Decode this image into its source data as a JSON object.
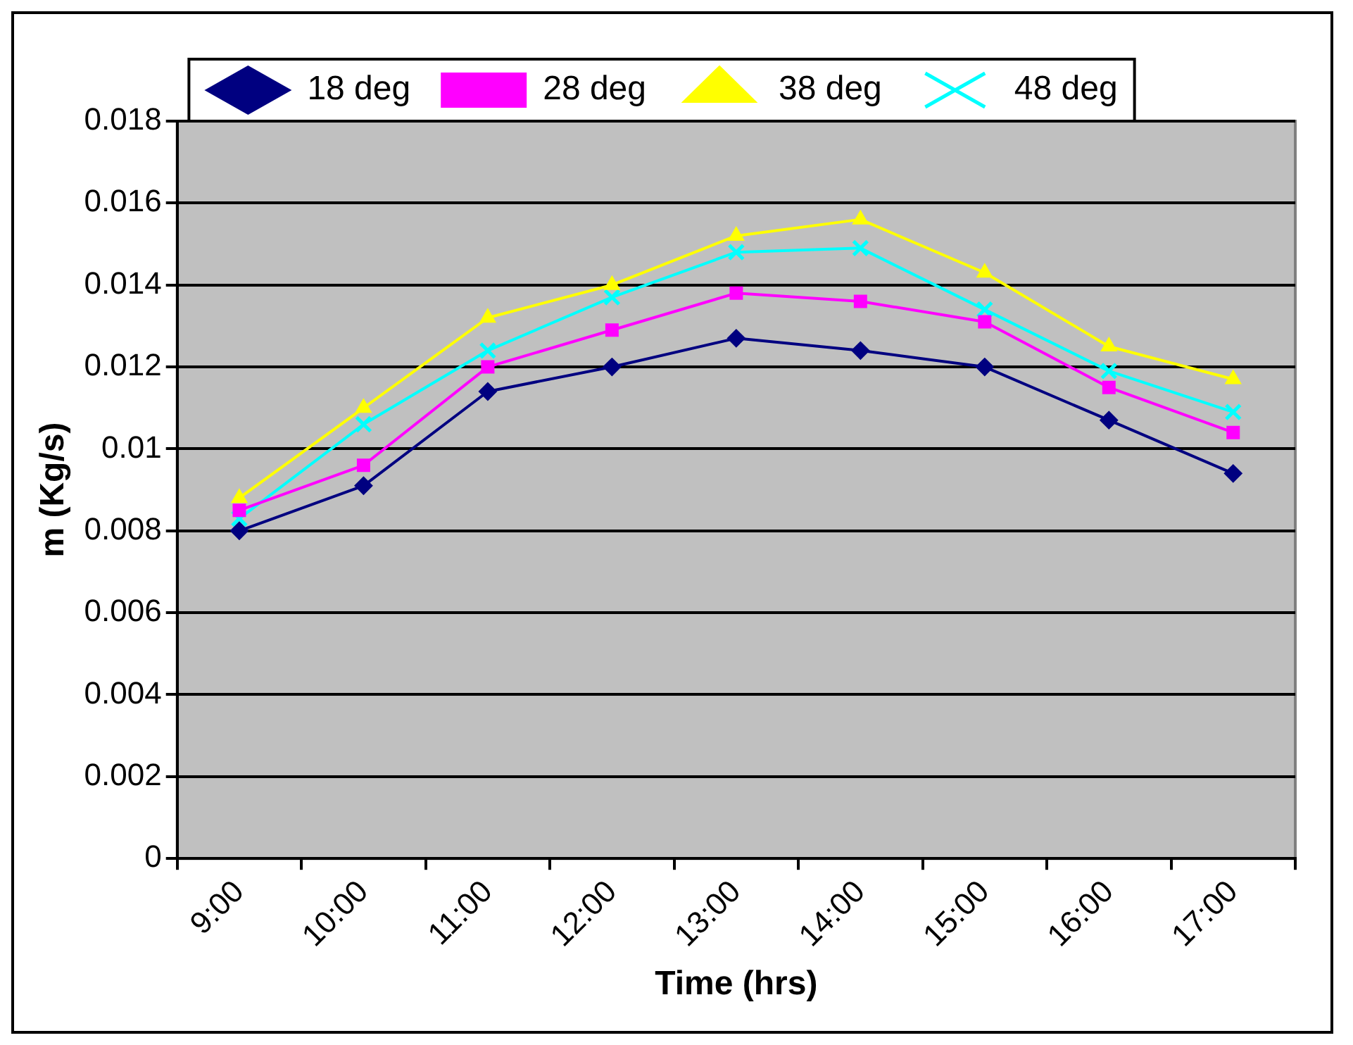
{
  "chart_data": {
    "type": "line",
    "xlabel": "Time (hrs)",
    "ylabel": "m (Kg/s)",
    "categories": [
      "9:00",
      "10:00",
      "11:00",
      "12:00",
      "13:00",
      "14:00",
      "15:00",
      "16:00",
      "17:00"
    ],
    "series": [
      {
        "name": "18 deg",
        "color": "#000080",
        "marker": "diamond",
        "values": [
          0.008,
          0.0091,
          0.0114,
          0.012,
          0.0127,
          0.0124,
          0.012,
          0.0107,
          0.0094
        ]
      },
      {
        "name": "28 deg",
        "color": "#ff00ff",
        "marker": "square",
        "values": [
          0.0085,
          0.0096,
          0.012,
          0.0129,
          0.0138,
          0.0136,
          0.0131,
          0.0115,
          0.0104
        ]
      },
      {
        "name": "38 deg",
        "color": "#ffff00",
        "marker": "triangle",
        "values": [
          0.0088,
          0.011,
          0.0132,
          0.014,
          0.0152,
          0.0156,
          0.0143,
          0.0125,
          0.0117
        ]
      },
      {
        "name": "48 deg",
        "color": "#00ffff",
        "marker": "cross",
        "values": [
          0.0083,
          0.0106,
          0.0124,
          0.0137,
          0.0148,
          0.0149,
          0.0134,
          0.0119,
          0.0109
        ]
      }
    ],
    "ylim": [
      0,
      0.018
    ],
    "yticks": [
      0,
      0.002,
      0.004,
      0.006,
      0.008,
      0.01,
      0.012,
      0.014,
      0.016,
      0.018
    ],
    "grid": "y",
    "legend": "top",
    "line_style": "solid"
  }
}
